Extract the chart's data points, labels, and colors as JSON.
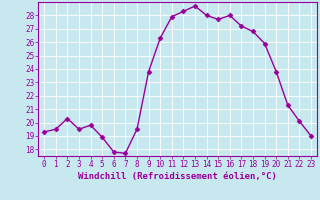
{
  "x": [
    0,
    1,
    2,
    3,
    4,
    5,
    6,
    7,
    8,
    9,
    10,
    11,
    12,
    13,
    14,
    15,
    16,
    17,
    18,
    19,
    20,
    21,
    22,
    23
  ],
  "y": [
    19.3,
    19.5,
    20.3,
    19.5,
    19.8,
    18.9,
    17.8,
    17.7,
    19.5,
    23.8,
    26.3,
    27.9,
    28.3,
    28.7,
    28.0,
    27.7,
    28.0,
    27.2,
    26.8,
    25.9,
    23.8,
    21.3,
    20.1,
    19.0
  ],
  "line_color": "#990099",
  "marker": "D",
  "markersize": 2.5,
  "linewidth": 1.0,
  "xlabel": "Windchill (Refroidissement éolien,°C)",
  "ylim": [
    17.5,
    29.0
  ],
  "xlim": [
    -0.5,
    23.5
  ],
  "yticks": [
    18,
    19,
    20,
    21,
    22,
    23,
    24,
    25,
    26,
    27,
    28
  ],
  "xticks": [
    0,
    1,
    2,
    3,
    4,
    5,
    6,
    7,
    8,
    9,
    10,
    11,
    12,
    13,
    14,
    15,
    16,
    17,
    18,
    19,
    20,
    21,
    22,
    23
  ],
  "background_color": "#c8e8f0",
  "grid_color": "#ffffff",
  "tick_label_fontsize": 5.5,
  "xlabel_fontsize": 6.5
}
